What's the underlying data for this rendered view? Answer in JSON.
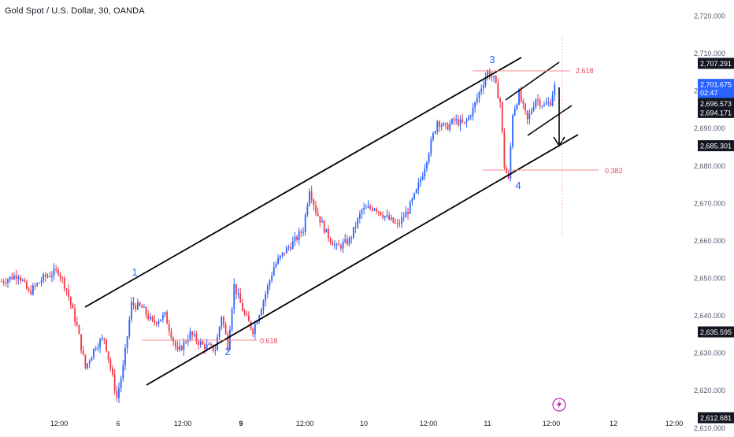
{
  "chart_data": {
    "type": "candlestick",
    "title": "Gold Spot / U.S. Dollar, 30, OANDA",
    "y_axis": {
      "ticks": [
        2610,
        2620,
        2630,
        2640,
        2650,
        2660,
        2670,
        2680,
        2690,
        2700,
        2710,
        2720
      ],
      "tick_labels": [
        "2,610.000",
        "2,620.000",
        "2,630.000",
        "2,640.000",
        "2,650.000",
        "2,660.000",
        "2,670.000",
        "2,680.000",
        "2,690.000",
        "2,700.000",
        "2,710.000",
        "2,720.000"
      ],
      "ylim": [
        2607,
        2727
      ]
    },
    "x_axis": {
      "tick_labels": [
        "12:00",
        "6",
        "12:00",
        "9",
        "12:00",
        "10",
        "12:00",
        "11",
        "12:00",
        "12",
        "12:00"
      ],
      "bold_labels": [
        "9"
      ]
    },
    "price_labels": [
      {
        "text": "2,707.291",
        "value": 2707.291,
        "style": "dark"
      },
      {
        "text": "2,701.675",
        "value": 2701.675,
        "style": "blue",
        "sub": "02:47"
      },
      {
        "text": "2,696.573",
        "value": 2696.573,
        "style": "dark"
      },
      {
        "text": "2,694.171",
        "value": 2694.171,
        "style": "dark"
      },
      {
        "text": "2,685.301",
        "value": 2685.301,
        "style": "dark"
      },
      {
        "text": "2,635.595",
        "value": 2635.595,
        "style": "dark"
      },
      {
        "text": "2,612.681",
        "value": 2612.681,
        "style": "dark"
      }
    ],
    "wave_labels": [
      "1",
      "2",
      "3",
      "4"
    ],
    "fib_labels": [
      "0.618",
      "2.618",
      "0.382"
    ],
    "candle_path": [
      {
        "i": 0,
        "v": 2649
      },
      {
        "i": 8,
        "v": 2651
      },
      {
        "i": 13,
        "v": 2646
      },
      {
        "i": 20,
        "v": 2650
      },
      {
        "i": 27,
        "v": 2652
      },
      {
        "i": 31,
        "v": 2647
      },
      {
        "i": 36,
        "v": 2637
      },
      {
        "i": 40,
        "v": 2626
      },
      {
        "i": 45,
        "v": 2632
      },
      {
        "i": 49,
        "v": 2634
      },
      {
        "i": 55,
        "v": 2618
      },
      {
        "i": 58,
        "v": 2626
      },
      {
        "i": 62,
        "v": 2643
      },
      {
        "i": 67,
        "v": 2642
      },
      {
        "i": 72,
        "v": 2638
      },
      {
        "i": 78,
        "v": 2640
      },
      {
        "i": 84,
        "v": 2630
      },
      {
        "i": 90,
        "v": 2635
      },
      {
        "i": 96,
        "v": 2632
      },
      {
        "i": 102,
        "v": 2631
      },
      {
        "i": 105,
        "v": 2640
      },
      {
        "i": 108,
        "v": 2632
      },
      {
        "i": 111,
        "v": 2648
      },
      {
        "i": 116,
        "v": 2640
      },
      {
        "i": 120,
        "v": 2636
      },
      {
        "i": 125,
        "v": 2644
      },
      {
        "i": 130,
        "v": 2653
      },
      {
        "i": 135,
        "v": 2657
      },
      {
        "i": 140,
        "v": 2660
      },
      {
        "i": 144,
        "v": 2663
      },
      {
        "i": 147,
        "v": 2674
      },
      {
        "i": 150,
        "v": 2668
      },
      {
        "i": 155,
        "v": 2662
      },
      {
        "i": 160,
        "v": 2658
      },
      {
        "i": 166,
        "v": 2660
      },
      {
        "i": 172,
        "v": 2668
      },
      {
        "i": 178,
        "v": 2669
      },
      {
        "i": 184,
        "v": 2666
      },
      {
        "i": 189,
        "v": 2664
      },
      {
        "i": 194,
        "v": 2668
      },
      {
        "i": 198,
        "v": 2673
      },
      {
        "i": 201,
        "v": 2678
      },
      {
        "i": 204,
        "v": 2684
      },
      {
        "i": 208,
        "v": 2692
      },
      {
        "i": 212,
        "v": 2690
      },
      {
        "i": 216,
        "v": 2692
      },
      {
        "i": 221,
        "v": 2691
      },
      {
        "i": 225,
        "v": 2695
      },
      {
        "i": 229,
        "v": 2701
      },
      {
        "i": 232,
        "v": 2705
      },
      {
        "i": 235,
        "v": 2703
      },
      {
        "i": 238,
        "v": 2697
      },
      {
        "i": 240,
        "v": 2680
      },
      {
        "i": 242,
        "v": 2676
      },
      {
        "i": 244,
        "v": 2694
      },
      {
        "i": 247,
        "v": 2699
      },
      {
        "i": 251,
        "v": 2692
      },
      {
        "i": 255,
        "v": 2698
      },
      {
        "i": 259,
        "v": 2696
      },
      {
        "i": 262,
        "v": 2697
      },
      {
        "i": 264,
        "v": 2701.675
      }
    ]
  }
}
